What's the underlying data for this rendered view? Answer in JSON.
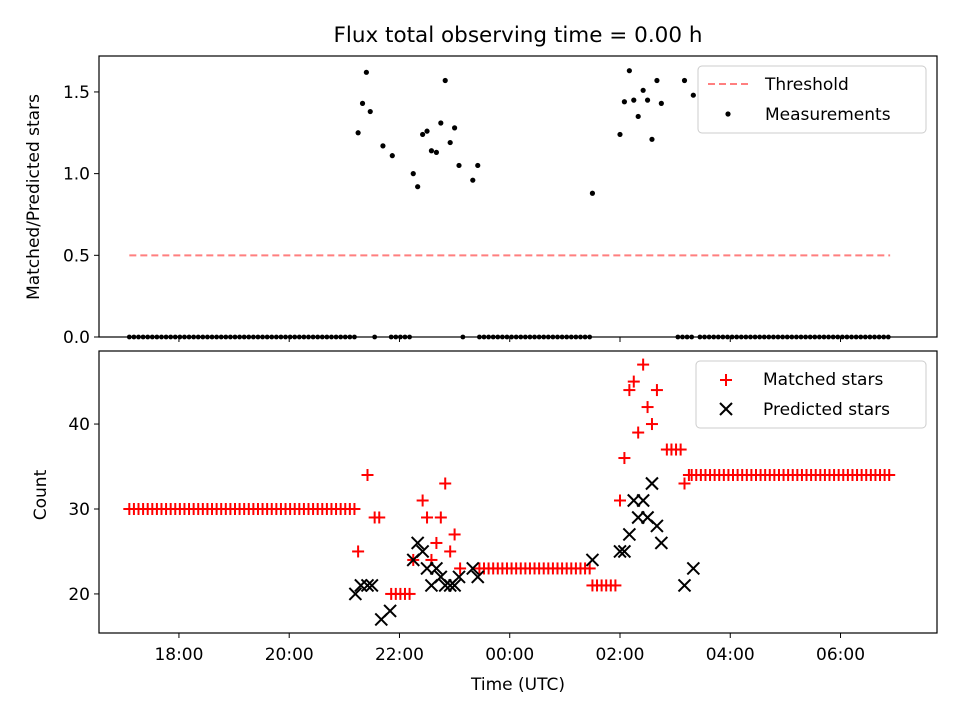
{
  "chart_data": [
    {
      "type": "scatter",
      "title": "Flux total observing time = 0.00 h",
      "xlabel": "",
      "ylabel": "Matched/Predicted stars",
      "xlim": [
        16.55,
        31.75
      ],
      "ylim": [
        0.0,
        1.72
      ],
      "xticks": [
        18,
        20,
        22,
        24,
        26,
        28,
        30
      ],
      "yticks": [
        0.0,
        0.5,
        1.0,
        1.5
      ],
      "ytick_labels": [
        "0.0",
        "0.5",
        "1.0",
        "1.5"
      ],
      "legend_position": "upper-right",
      "series": [
        {
          "name": "Threshold",
          "kind": "dashed-line",
          "color": "#ff7f7f",
          "x": [
            17.1,
            30.9
          ],
          "y": [
            0.5,
            0.5
          ]
        },
        {
          "name": "Measurements",
          "kind": "dots",
          "color": "#000000",
          "points": [
            [
              21.25,
              1.25
            ],
            [
              21.33,
              1.43
            ],
            [
              21.4,
              1.62
            ],
            [
              21.47,
              1.38
            ],
            [
              21.7,
              1.17
            ],
            [
              21.87,
              1.11
            ],
            [
              22.25,
              1.0
            ],
            [
              22.33,
              0.92
            ],
            [
              22.42,
              1.24
            ],
            [
              22.5,
              1.26
            ],
            [
              22.58,
              1.14
            ],
            [
              22.67,
              1.13
            ],
            [
              22.75,
              1.31
            ],
            [
              22.83,
              1.57
            ],
            [
              22.92,
              1.19
            ],
            [
              23.0,
              1.28
            ],
            [
              23.08,
              1.05
            ],
            [
              23.33,
              0.96
            ],
            [
              23.42,
              1.05
            ],
            [
              25.5,
              0.88
            ],
            [
              26.0,
              1.24
            ],
            [
              26.08,
              1.44
            ],
            [
              26.17,
              1.63
            ],
            [
              26.25,
              1.45
            ],
            [
              26.33,
              1.35
            ],
            [
              26.42,
              1.51
            ],
            [
              26.5,
              1.45
            ],
            [
              26.58,
              1.21
            ],
            [
              26.67,
              1.57
            ],
            [
              26.75,
              1.43
            ],
            [
              27.17,
              1.57
            ],
            [
              27.33,
              1.48
            ]
          ],
          "zero_ranges": [
            [
              17.1,
              21.2
            ],
            [
              21.55,
              21.6
            ],
            [
              21.85,
              22.2
            ],
            [
              23.15,
              23.2
            ],
            [
              23.45,
              25.45
            ],
            [
              27.05,
              27.3
            ],
            [
              27.45,
              30.9
            ]
          ]
        }
      ]
    },
    {
      "type": "scatter",
      "title": "",
      "xlabel": "Time (UTC)",
      "ylabel": "Count",
      "xlim": [
        16.55,
        31.75
      ],
      "ylim": [
        15.4,
        48.6
      ],
      "xticks": [
        18,
        20,
        22,
        24,
        26,
        28,
        30
      ],
      "xtick_labels": [
        "18:00",
        "20:00",
        "22:00",
        "00:00",
        "02:00",
        "04:00",
        "06:00"
      ],
      "yticks": [
        20,
        30,
        40
      ],
      "ytick_labels": [
        "20",
        "30",
        "40"
      ],
      "legend_position": "upper-right",
      "series": [
        {
          "name": "Matched stars",
          "marker": "+",
          "color": "#ff0000",
          "runs": [
            [
              17.1,
              21.2,
              30
            ],
            [
              21.55,
              21.7,
              29
            ],
            [
              21.85,
              22.2,
              20
            ],
            [
              23.45,
              25.45,
              23
            ],
            [
              25.5,
              25.95,
              21
            ],
            [
              26.85,
              27.1,
              37
            ],
            [
              27.3,
              30.9,
              34
            ]
          ],
          "points": [
            [
              21.25,
              25
            ],
            [
              21.42,
              34
            ],
            [
              22.25,
              24
            ],
            [
              22.42,
              31
            ],
            [
              22.5,
              29
            ],
            [
              22.58,
              24
            ],
            [
              22.67,
              26
            ],
            [
              22.75,
              29
            ],
            [
              22.83,
              33
            ],
            [
              22.92,
              25
            ],
            [
              23.0,
              27
            ],
            [
              23.1,
              23
            ],
            [
              26.0,
              31
            ],
            [
              26.08,
              36
            ],
            [
              26.17,
              44
            ],
            [
              26.25,
              45
            ],
            [
              26.33,
              39
            ],
            [
              26.42,
              47
            ],
            [
              26.5,
              42
            ],
            [
              26.58,
              40
            ],
            [
              26.67,
              44
            ],
            [
              27.17,
              33
            ],
            [
              27.25,
              34
            ]
          ]
        },
        {
          "name": "Predicted stars",
          "marker": "x",
          "color": "#000000",
          "points": [
            [
              21.2,
              20
            ],
            [
              21.3,
              21
            ],
            [
              21.42,
              21
            ],
            [
              21.5,
              21
            ],
            [
              21.67,
              17
            ],
            [
              21.83,
              18
            ],
            [
              22.25,
              24
            ],
            [
              22.33,
              26
            ],
            [
              22.42,
              25
            ],
            [
              22.5,
              23
            ],
            [
              22.58,
              21
            ],
            [
              22.67,
              23
            ],
            [
              22.75,
              22
            ],
            [
              22.83,
              21
            ],
            [
              22.92,
              21
            ],
            [
              23.0,
              21
            ],
            [
              23.08,
              22
            ],
            [
              23.33,
              23
            ],
            [
              23.42,
              22
            ],
            [
              25.5,
              24
            ],
            [
              26.0,
              25
            ],
            [
              26.08,
              25
            ],
            [
              26.17,
              27
            ],
            [
              26.25,
              31
            ],
            [
              26.33,
              29
            ],
            [
              26.42,
              31
            ],
            [
              26.5,
              29
            ],
            [
              26.58,
              33
            ],
            [
              26.67,
              28
            ],
            [
              26.75,
              26
            ],
            [
              27.17,
              21
            ],
            [
              27.33,
              23
            ]
          ]
        }
      ]
    }
  ]
}
